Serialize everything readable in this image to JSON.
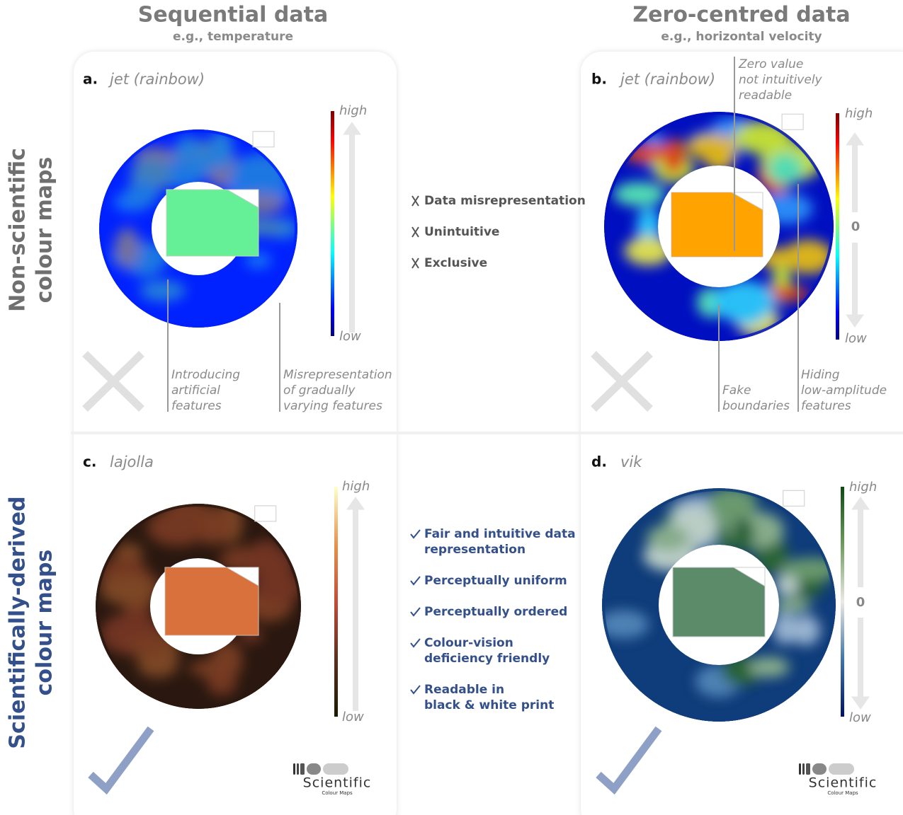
{
  "columns": [
    {
      "title": "Sequential data",
      "subtitle": "e.g., temperature"
    },
    {
      "title": "Zero-centred data",
      "subtitle": "e.g., horizontal velocity"
    }
  ],
  "rows": [
    {
      "label_lines": [
        "Non-scientific",
        "colour maps"
      ]
    },
    {
      "label_lines": [
        "Scientifically-derived",
        "colour maps"
      ]
    }
  ],
  "panels": [
    {
      "letter": "a.",
      "name": "jet (rainbow)",
      "high": "high",
      "low": "low",
      "annotations": [
        {
          "lines": [
            "Introducing",
            "artificial",
            "features"
          ]
        },
        {
          "lines": [
            "Misrepresentation",
            "of gradually",
            "varying features"
          ]
        }
      ]
    },
    {
      "letter": "b.",
      "name": "jet (rainbow)",
      "high": "high",
      "mid": "0",
      "low": "low",
      "annotations": [
        {
          "lines": [
            "Zero value",
            "not intuitively",
            "readable"
          ]
        },
        {
          "lines": [
            "Fake",
            "boundaries"
          ]
        },
        {
          "lines": [
            "Hiding",
            "low-amplitude",
            "features"
          ]
        }
      ]
    },
    {
      "letter": "c.",
      "name": "lajolla",
      "high": "high",
      "low": "low"
    },
    {
      "letter": "d.",
      "name": "vik",
      "high": "high",
      "mid": "0",
      "low": "low"
    }
  ],
  "drawbacks": [
    "Data misrepresentation",
    "Unintuitive",
    "Exclusive"
  ],
  "benefits": [
    [
      "Fair and intuitive data",
      "representation"
    ],
    [
      "Perceptually uniform"
    ],
    [
      "Perceptually ordered"
    ],
    [
      "Colour-vision",
      "deficiency friendly"
    ],
    [
      "Readable in",
      "black & white print"
    ]
  ],
  "logos": [
    {
      "name": "Scientific",
      "subtitle": "Colour Maps"
    },
    {
      "name": "Scientific",
      "subtitle": "Colour Maps"
    }
  ]
}
